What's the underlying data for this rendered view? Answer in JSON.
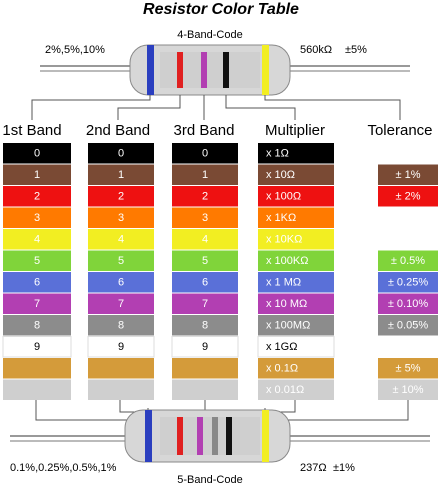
{
  "title": "Resistor Color Table",
  "top_resistor": {
    "label": "4-Band-Code",
    "left_note": "2%,5%,10%",
    "right_value": "560kΩ",
    "right_tolerance": "±5%"
  },
  "bottom_resistor": {
    "label": "5-Band-Code",
    "left_note": "0.1%,0.25%,0.5%,1%",
    "right_value": "237Ω",
    "right_tolerance": "±1%"
  },
  "headers": [
    "1st Band",
    "2nd Band",
    "3rd Band",
    "Multiplier",
    "Tolerance"
  ],
  "rows": [
    {
      "color": "#000000",
      "digit": "0",
      "multiplier": "x 1Ω"
    },
    {
      "color": "#7a4a34",
      "digit": "1",
      "multiplier": "x 10Ω",
      "tolerance": "± 1%"
    },
    {
      "color": "#ee1111",
      "digit": "2",
      "multiplier": "x 100Ω",
      "tolerance": "± 2%"
    },
    {
      "color": "#ff7a00",
      "digit": "3",
      "multiplier": "x 1KΩ"
    },
    {
      "color": "#f2ee22",
      "digit": "4",
      "multiplier": "x 10KΩ"
    },
    {
      "color": "#80d43a",
      "digit": "5",
      "multiplier": "x 100KΩ",
      "tolerance": "± 0.5%"
    },
    {
      "color": "#5a70d8",
      "digit": "6",
      "multiplier": "x 1 MΩ",
      "tolerance": "± 0.25%"
    },
    {
      "color": "#b23fb2",
      "digit": "7",
      "multiplier": "x 10 MΩ",
      "tolerance": "± 0.10%"
    },
    {
      "color": "#8c8c8c",
      "digit": "8",
      "multiplier": "x 100MΩ",
      "tolerance": "± 0.05%"
    },
    {
      "color": "#ffffff",
      "digit": "9",
      "multiplier": "x 1GΩ"
    },
    {
      "color": "#d49b3a",
      "multiplier": "x 0.1Ω",
      "tolerance": "± 5%"
    },
    {
      "color": "#cfcfcf",
      "multiplier": "x 0.01Ω",
      "tolerance": "± 10%"
    }
  ]
}
